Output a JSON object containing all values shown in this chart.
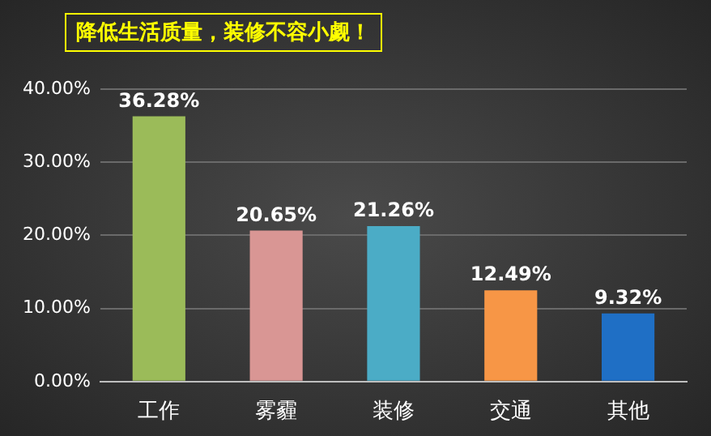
{
  "chart_data": {
    "type": "bar",
    "title": "降低生活质量，装修不容小觑！",
    "categories": [
      "工作",
      "雾霾",
      "装修",
      "交通",
      "其他"
    ],
    "values": [
      36.28,
      20.65,
      21.26,
      12.49,
      9.32
    ],
    "colors": [
      "#9bbb59",
      "#d99694",
      "#4bacc6",
      "#f79646",
      "#1f6fc5"
    ],
    "value_labels": [
      "36.28%",
      "20.65%",
      "21.26%",
      "12.49%",
      "9.32%"
    ],
    "ylim": [
      0,
      40
    ],
    "yticks": [
      {
        "value": 0,
        "label": "0.00%"
      },
      {
        "value": 10,
        "label": "10.00%"
      },
      {
        "value": 20,
        "label": "20.00%"
      },
      {
        "value": 30,
        "label": "30.00%"
      },
      {
        "value": 40,
        "label": "40.00%"
      }
    ],
    "grid": "y",
    "legend": false
  }
}
